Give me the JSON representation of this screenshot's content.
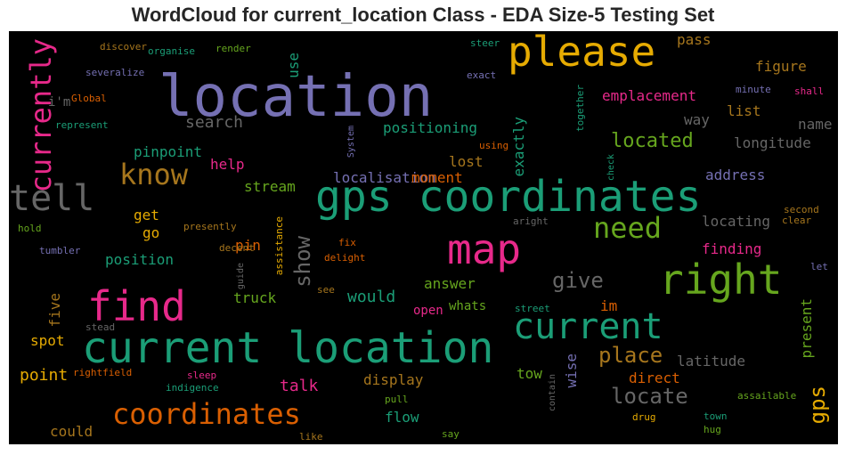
{
  "title": "WordCloud for current_location Class - EDA Size-5 Testing Set",
  "chart_data": {
    "type": "wordcloud",
    "title": "WordCloud for current_location Class - EDA Size-5 Testing Set",
    "background": "#000000",
    "words": [
      {
        "text": "location",
        "color": "#7570b3"
      },
      {
        "text": "current location",
        "color": "#1b9e77"
      },
      {
        "text": "gps coordinates",
        "color": "#1b9e77"
      },
      {
        "text": "please",
        "color": "#e6ab02"
      },
      {
        "text": "map",
        "color": "#e7298a"
      },
      {
        "text": "right",
        "color": "#66a61e"
      },
      {
        "text": "find",
        "color": "#e7298a"
      },
      {
        "text": "current",
        "color": "#1b9e77"
      },
      {
        "text": "tell",
        "color": "#666666"
      },
      {
        "text": "coordinates",
        "color": "#d95f02"
      },
      {
        "text": "currently",
        "color": "#e7298a"
      },
      {
        "text": "know",
        "color": "#a6761d"
      },
      {
        "text": "need",
        "color": "#66a61e"
      },
      {
        "text": "give",
        "color": "#666666"
      },
      {
        "text": "locate",
        "color": "#666666"
      },
      {
        "text": "place",
        "color": "#a6761d"
      },
      {
        "text": "show",
        "color": "#666666"
      },
      {
        "text": "gps",
        "color": "#e6ab02"
      },
      {
        "text": "located",
        "color": "#66a61e"
      },
      {
        "text": "emplacement",
        "color": "#e7298a"
      },
      {
        "text": "pass",
        "color": "#a6761d"
      },
      {
        "text": "figure",
        "color": "#a6761d"
      },
      {
        "text": "list",
        "color": "#a6761d"
      },
      {
        "text": "way",
        "color": "#666666"
      },
      {
        "text": "name",
        "color": "#666666"
      },
      {
        "text": "longitude",
        "color": "#666666"
      },
      {
        "text": "address",
        "color": "#7570b3"
      },
      {
        "text": "search",
        "color": "#666666"
      },
      {
        "text": "positioning",
        "color": "#1b9e77"
      },
      {
        "text": "exactly",
        "color": "#1b9e77"
      },
      {
        "text": "pinpoint",
        "color": "#1b9e77"
      },
      {
        "text": "help",
        "color": "#e7298a"
      },
      {
        "text": "lost",
        "color": "#a6761d"
      },
      {
        "text": "localisation",
        "color": "#7570b3"
      },
      {
        "text": "moment",
        "color": "#d95f02"
      },
      {
        "text": "stream",
        "color": "#66a61e"
      },
      {
        "text": "locating",
        "color": "#666666"
      },
      {
        "text": "finding",
        "color": "#e7298a"
      },
      {
        "text": "get",
        "color": "#e6ab02"
      },
      {
        "text": "go",
        "color": "#e6ab02"
      },
      {
        "text": "pin",
        "color": "#d95f02"
      },
      {
        "text": "position",
        "color": "#1b9e77"
      },
      {
        "text": "answer",
        "color": "#66a61e"
      },
      {
        "text": "im",
        "color": "#d95f02"
      },
      {
        "text": "truck",
        "color": "#66a61e"
      },
      {
        "text": "would",
        "color": "#1b9e77"
      },
      {
        "text": "open",
        "color": "#e7298a"
      },
      {
        "text": "whats",
        "color": "#66a61e"
      },
      {
        "text": "present",
        "color": "#66a61e"
      },
      {
        "text": "spot",
        "color": "#e6ab02"
      },
      {
        "text": "five",
        "color": "#a6761d"
      },
      {
        "text": "point",
        "color": "#e6ab02"
      },
      {
        "text": "talk",
        "color": "#e7298a"
      },
      {
        "text": "display",
        "color": "#a6761d"
      },
      {
        "text": "wise",
        "color": "#7570b3"
      },
      {
        "text": "tow",
        "color": "#66a61e"
      },
      {
        "text": "direct",
        "color": "#d95f02"
      },
      {
        "text": "latitude",
        "color": "#666666"
      },
      {
        "text": "flow",
        "color": "#1b9e77"
      },
      {
        "text": "could",
        "color": "#a6761d"
      },
      {
        "text": "use",
        "color": "#1b9e77"
      },
      {
        "text": "i'm",
        "color": "#666666"
      },
      {
        "text": "discover",
        "color": "#a6761d"
      },
      {
        "text": "organise",
        "color": "#1b9e77"
      },
      {
        "text": "render",
        "color": "#66a61e"
      },
      {
        "text": "severalize",
        "color": "#7570b3"
      },
      {
        "text": "Global",
        "color": "#d95f02"
      },
      {
        "text": "represent",
        "color": "#1b9e77"
      },
      {
        "text": "steer",
        "color": "#1b9e77"
      },
      {
        "text": "exact",
        "color": "#7570b3"
      },
      {
        "text": "together",
        "color": "#1b9e77"
      },
      {
        "text": "minute",
        "color": "#7570b3"
      },
      {
        "text": "shall",
        "color": "#e7298a"
      },
      {
        "text": "System",
        "color": "#7570b3"
      },
      {
        "text": "using",
        "color": "#d95f02"
      },
      {
        "text": "check",
        "color": "#1b9e77"
      },
      {
        "text": "second",
        "color": "#a6761d"
      },
      {
        "text": "clear",
        "color": "#a6761d"
      },
      {
        "text": "aright",
        "color": "#666666"
      },
      {
        "text": "hold",
        "color": "#66a61e"
      },
      {
        "text": "presently",
        "color": "#a6761d"
      },
      {
        "text": "decent",
        "color": "#a6761d"
      },
      {
        "text": "assistance",
        "color": "#e6ab02"
      },
      {
        "text": "fix",
        "color": "#d95f02"
      },
      {
        "text": "delight",
        "color": "#d95f02"
      },
      {
        "text": "tumbler",
        "color": "#7570b3"
      },
      {
        "text": "guide",
        "color": "#666666"
      },
      {
        "text": "let",
        "color": "#7570b3"
      },
      {
        "text": "see",
        "color": "#a6761d"
      },
      {
        "text": "street",
        "color": "#1b9e77"
      },
      {
        "text": "stead",
        "color": "#666666"
      },
      {
        "text": "rightfield",
        "color": "#d95f02"
      },
      {
        "text": "sleep",
        "color": "#e7298a"
      },
      {
        "text": "indigence",
        "color": "#1b9e77"
      },
      {
        "text": "pull",
        "color": "#66a61e"
      },
      {
        "text": "contain",
        "color": "#666666"
      },
      {
        "text": "assailable",
        "color": "#66a61e"
      },
      {
        "text": "drug",
        "color": "#e6ab02"
      },
      {
        "text": "town",
        "color": "#1b9e77"
      },
      {
        "text": "like",
        "color": "#a6761d"
      },
      {
        "text": "say",
        "color": "#66a61e"
      },
      {
        "text": "hug",
        "color": "#66a61e"
      }
    ]
  }
}
